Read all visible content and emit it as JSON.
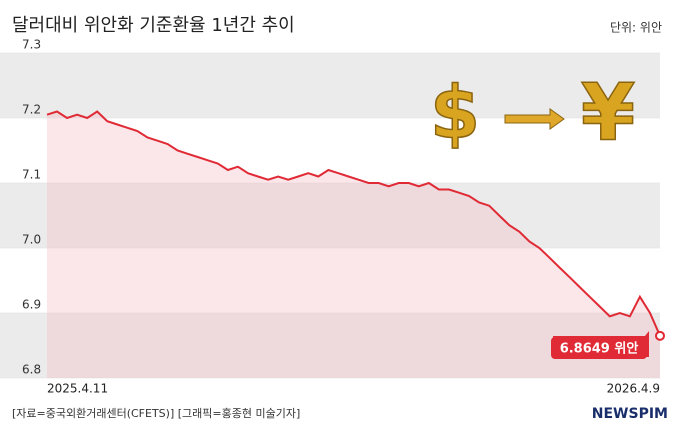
{
  "chart_data": {
    "type": "line",
    "title": "달러대비 위안화 기준환율 1년간 추이",
    "unit": "단위: 위안",
    "categories": [
      "2025.4.11",
      null,
      null,
      null,
      null,
      null,
      null,
      null,
      null,
      null,
      null,
      null,
      null,
      null,
      null,
      null,
      null,
      null,
      null,
      null,
      null,
      null,
      null,
      null,
      null,
      null,
      null,
      null,
      null,
      null,
      null,
      null,
      null,
      null,
      null,
      null,
      null,
      null,
      null,
      null,
      null,
      null,
      null,
      null,
      null,
      null,
      null,
      null,
      null,
      null,
      null,
      null,
      null,
      null,
      null,
      null,
      null,
      null,
      null,
      null,
      null,
      "2026.4.9"
    ],
    "values": [
      7.205,
      7.21,
      7.2,
      7.205,
      7.2,
      7.21,
      7.195,
      7.19,
      7.185,
      7.18,
      7.17,
      7.165,
      7.16,
      7.15,
      7.145,
      7.14,
      7.135,
      7.13,
      7.12,
      7.125,
      7.115,
      7.11,
      7.105,
      7.11,
      7.105,
      7.11,
      7.115,
      7.11,
      7.12,
      7.115,
      7.11,
      7.105,
      7.1,
      7.1,
      7.095,
      7.1,
      7.1,
      7.095,
      7.1,
      7.09,
      7.09,
      7.085,
      7.08,
      7.07,
      7.065,
      7.05,
      7.035,
      7.025,
      7.01,
      7.0,
      6.985,
      6.97,
      6.955,
      6.94,
      6.925,
      6.91,
      6.895,
      6.9,
      6.895,
      6.925,
      6.9,
      6.8649
    ],
    "value_labels": [
      null,
      null,
      null,
      null,
      null,
      null,
      null,
      null,
      null,
      null,
      null,
      null,
      null,
      null,
      null,
      null,
      null,
      null,
      null,
      null,
      null,
      null,
      null,
      null,
      null,
      null,
      null,
      null,
      null,
      null,
      null,
      null,
      null,
      null,
      null,
      null,
      null,
      null,
      null,
      null,
      null,
      null,
      null,
      null,
      null,
      null,
      null,
      null,
      null,
      null,
      null,
      null,
      null,
      null,
      null,
      null,
      null,
      null,
      null,
      null,
      null,
      "6.8649 위안"
    ],
    "color": "#e02a35",
    "ylim": [
      6.8,
      7.3
    ],
    "yticks": [
      6.8,
      6.9,
      {
        "value": 7,
        "label": "7.0"
      },
      7.1,
      7.2,
      7.3
    ],
    "illustration": [
      "$",
      "¥"
    ],
    "source": "[자료=중국외환거래센터(CFETS)] [그래픽=홍종현 미술기자]",
    "logo": "NEWSPIM"
  }
}
